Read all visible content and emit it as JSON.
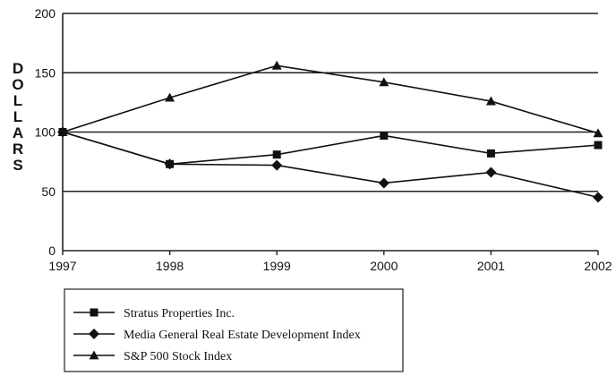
{
  "chart_data": {
    "type": "line",
    "x": [
      "1997",
      "1998",
      "1999",
      "2000",
      "2001",
      "2002"
    ],
    "ylabel": "DOLLARS",
    "ylim": [
      0,
      200
    ],
    "yticks": [
      "0",
      "50",
      "100",
      "150",
      "200"
    ],
    "grid": "horizontal",
    "legend_position": "bottom-left",
    "series": [
      {
        "name": "Stratus Properties Inc.",
        "marker": "square",
        "values": [
          100,
          73,
          81,
          97,
          82,
          89
        ]
      },
      {
        "name": "Media General Real Estate Development Index",
        "marker": "diamond",
        "values": [
          100,
          73,
          72,
          57,
          66,
          45
        ]
      },
      {
        "name": "S&P 500 Stock Index",
        "marker": "triangle",
        "values": [
          100,
          129,
          156,
          142,
          126,
          99
        ]
      }
    ]
  }
}
